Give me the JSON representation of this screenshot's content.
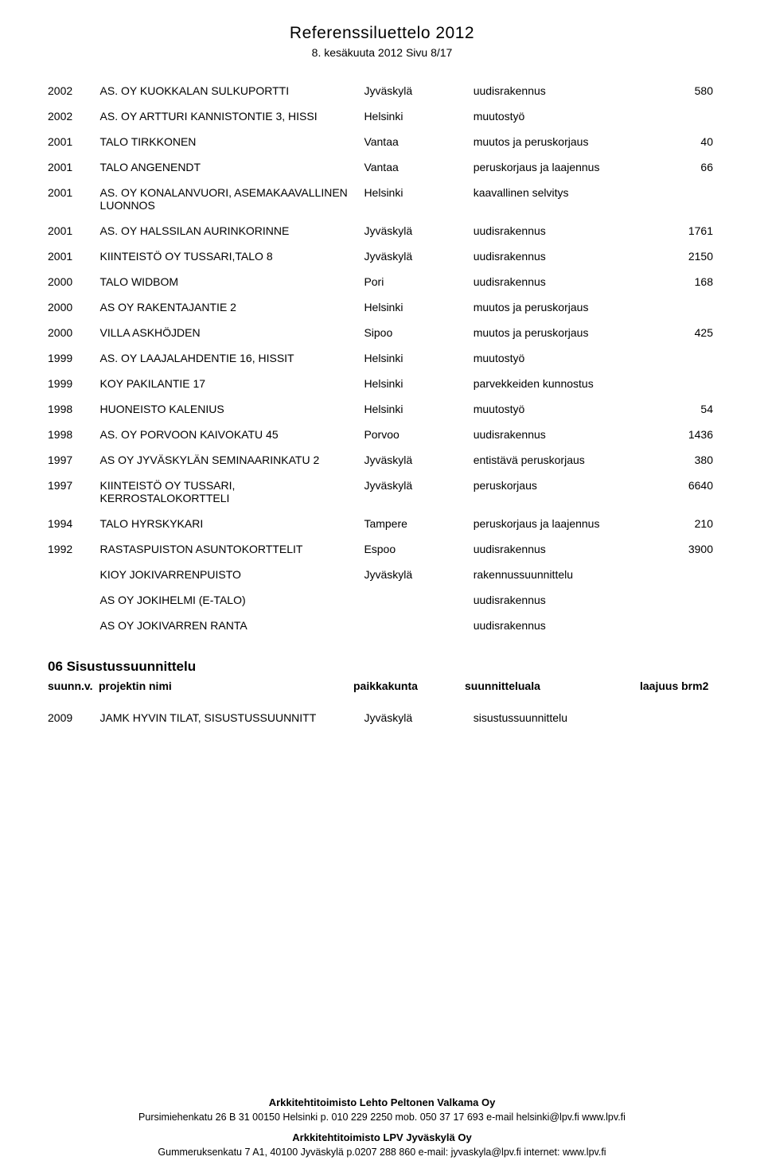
{
  "header": {
    "title": "Referenssiluettelo 2012",
    "subtitle": "8. kesäkuuta 2012  Sivu 8/17"
  },
  "rows": [
    {
      "year": "2002",
      "name": "AS. OY KUOKKALAN SULKUPORTTI",
      "loc": "Jyväskylä",
      "type": "uudisrakennus",
      "num": "580"
    },
    {
      "year": "2002",
      "name": "AS. OY ARTTURI KANNISTONTIE 3, HISSI",
      "loc": "Helsinki",
      "type": "muutostyö",
      "num": ""
    },
    {
      "year": "2001",
      "name": "TALO TIRKKONEN",
      "loc": "Vantaa",
      "type": "muutos ja peruskorjaus",
      "num": "40"
    },
    {
      "year": "2001",
      "name": "TALO ANGENENDT",
      "loc": "Vantaa",
      "type": "peruskorjaus ja laajennus",
      "num": "66"
    },
    {
      "year": "2001",
      "name": "AS. OY KONALANVUORI, ASEMAKAAVALLINEN LUONNOS",
      "loc": "Helsinki",
      "type": "kaavallinen selvitys",
      "num": ""
    },
    {
      "year": "2001",
      "name": "AS. OY HALSSILAN AURINKORINNE",
      "loc": "Jyväskylä",
      "type": "uudisrakennus",
      "num": "1761"
    },
    {
      "year": "2001",
      "name": "KIINTEISTÖ OY TUSSARI,TALO 8",
      "loc": "Jyväskylä",
      "type": "uudisrakennus",
      "num": "2150"
    },
    {
      "year": "2000",
      "name": "TALO WIDBOM",
      "loc": "Pori",
      "type": "uudisrakennus",
      "num": "168"
    },
    {
      "year": "2000",
      "name": "AS OY RAKENTAJANTIE 2",
      "loc": "Helsinki",
      "type": "muutos ja peruskorjaus",
      "num": ""
    },
    {
      "year": "2000",
      "name": "VILLA ASKHÖJDEN",
      "loc": "Sipoo",
      "type": "muutos ja peruskorjaus",
      "num": "425"
    },
    {
      "year": "1999",
      "name": "AS. OY LAAJALAHDENTIE 16, HISSIT",
      "loc": "Helsinki",
      "type": "muutostyö",
      "num": ""
    },
    {
      "year": "1999",
      "name": "KOY PAKILANTIE 17",
      "loc": "Helsinki",
      "type": "parvekkeiden kunnostus",
      "num": ""
    },
    {
      "year": "1998",
      "name": "HUONEISTO KALENIUS",
      "loc": "Helsinki",
      "type": "muutostyö",
      "num": "54"
    },
    {
      "year": "1998",
      "name": "AS. OY PORVOON KAIVOKATU 45",
      "loc": "Porvoo",
      "type": "uudisrakennus",
      "num": "1436"
    },
    {
      "year": "1997",
      "name": "AS OY JYVÄSKYLÄN SEMINAARINKATU 2",
      "loc": "Jyväskylä",
      "type": "entistävä peruskorjaus",
      "num": "380"
    },
    {
      "year": "1997",
      "name": "KIINTEISTÖ OY TUSSARI, KERROSTALOKORTTELI",
      "loc": "Jyväskylä",
      "type": "peruskorjaus",
      "num": "6640"
    },
    {
      "year": "1994",
      "name": "TALO HYRSKYKARI",
      "loc": "Tampere",
      "type": "peruskorjaus ja laajennus",
      "num": "210"
    },
    {
      "year": "1992",
      "name": "RASTASPUISTON ASUNTOKORTTELIT",
      "loc": "Espoo",
      "type": "uudisrakennus",
      "num": "3900"
    },
    {
      "year": "",
      "name": "KIOY JOKIVARRENPUISTO",
      "loc": "Jyväskylä",
      "type": "rakennussuunnittelu",
      "num": ""
    },
    {
      "year": "",
      "name": "AS OY JOKIHELMI (E-TALO)",
      "loc": "",
      "type": "uudisrakennus",
      "num": ""
    },
    {
      "year": "",
      "name": "AS OY JOKIVARREN RANTA",
      "loc": "",
      "type": "uudisrakennus",
      "num": ""
    }
  ],
  "section06": {
    "title": "06 Sisustussuunnittelu",
    "headers": {
      "c1": "suunn.v.",
      "c2": "projektin nimi",
      "c3": "paikkakunta",
      "c4": "suunnitteluala",
      "c5": "laajuus brm2"
    },
    "row": {
      "year": "2009",
      "name": "JAMK HYVIN TILAT, SISUSTUSSUUNNITT",
      "loc": "Jyväskylä",
      "type": "sisustussuunnittelu",
      "num": ""
    }
  },
  "footer": {
    "company1": "Arkkitehtitoimisto Lehto Peltonen Valkama Oy",
    "line1": "Pursimiehenkatu 26 B 31 00150 Helsinki  p. 010 229 2250   mob. 050  37 17 693  e-mail helsinki@lpv.fi   www.lpv.fi",
    "company2": "Arkkitehtitoimisto LPV Jyväskylä Oy",
    "line2": "Gummeruksenkatu 7 A1, 40100 Jyväskylä p.0207 288 860  e-mail: jyvaskyla@lpv.fi   internet: www.lpv.fi"
  }
}
